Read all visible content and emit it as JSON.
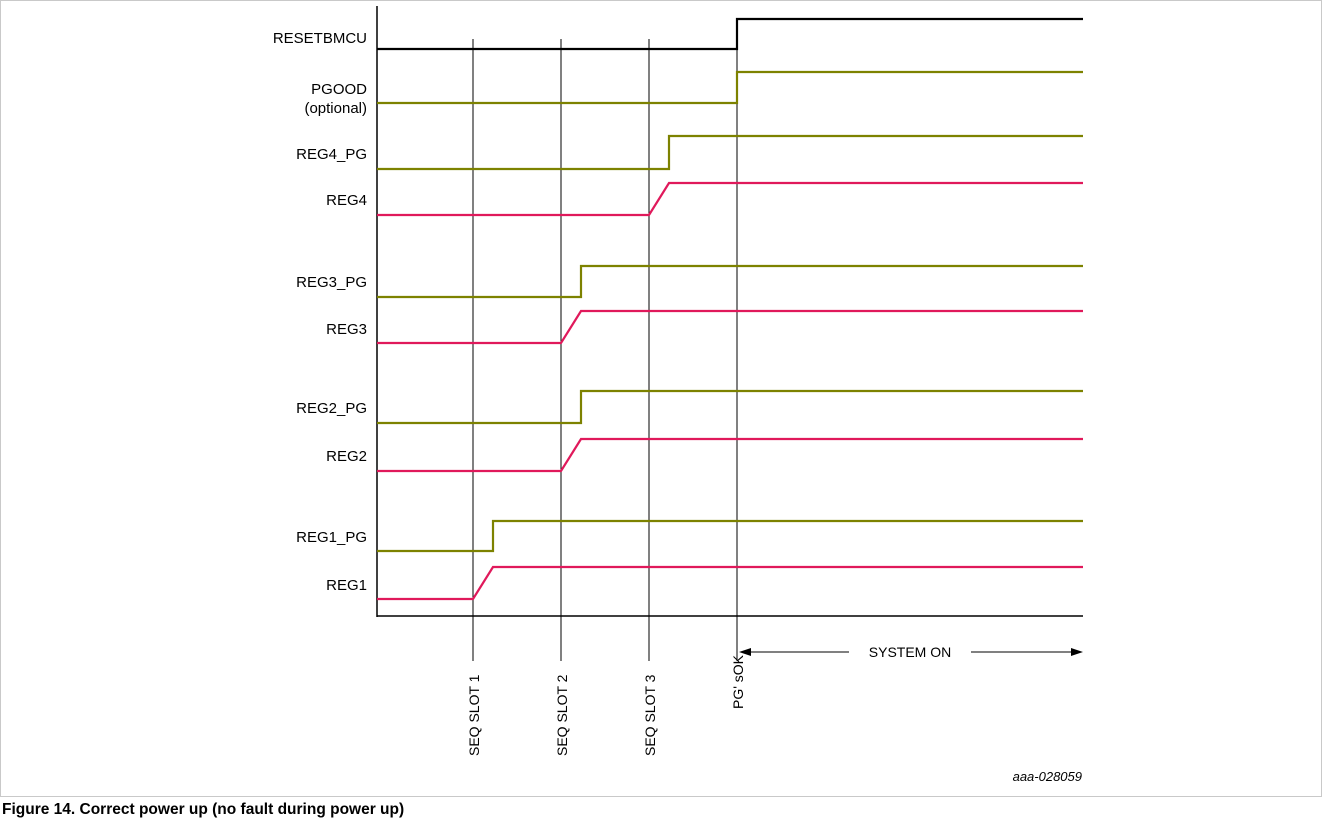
{
  "signals": [
    {
      "label": "RESETBMCU",
      "kind": "reset",
      "color": "#000000"
    },
    {
      "label": "PGOOD",
      "label2": "(optional)",
      "kind": "pg",
      "color": "#7d8200"
    },
    {
      "label": "REG4_PG",
      "kind": "pg",
      "color": "#7d8200"
    },
    {
      "label": "REG4",
      "kind": "reg",
      "color": "#e0195b"
    },
    {
      "label": "REG3_PG",
      "kind": "pg",
      "color": "#7d8200"
    },
    {
      "label": "REG3",
      "kind": "reg",
      "color": "#e0195b"
    },
    {
      "label": "REG2_PG",
      "kind": "pg",
      "color": "#7d8200"
    },
    {
      "label": "REG2",
      "kind": "reg",
      "color": "#e0195b"
    },
    {
      "label": "REG1_PG",
      "kind": "pg",
      "color": "#7d8200"
    },
    {
      "label": "REG1",
      "kind": "reg",
      "color": "#e0195b"
    }
  ],
  "markers": [
    {
      "label": "SEQ SLOT 1"
    },
    {
      "label": "SEQ SLOT 2"
    },
    {
      "label": "SEQ SLOT 3"
    },
    {
      "label": "PG' sOK"
    }
  ],
  "span_label": "SYSTEM ON",
  "reference": "aaa-028059",
  "caption": "Figure 14.  Correct power up (no fault during power up)",
  "colors": {
    "regulator": "#e0195b",
    "power_good": "#7d8200",
    "reset": "#000000",
    "axis": "#000000"
  }
}
